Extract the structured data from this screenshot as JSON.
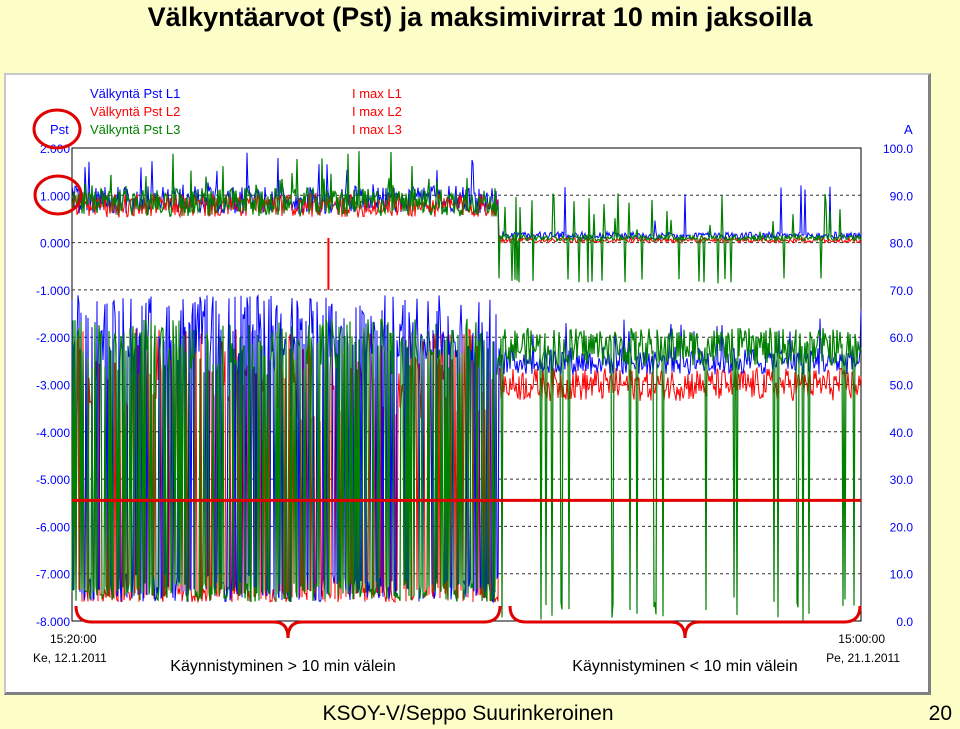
{
  "slide": {
    "title": "Välkyntäarvot (Pst) ja maksimivirrat 10 min jaksoilla",
    "footer": "KSOY-V/Seppo Suurinkeroinen",
    "page_number": "20"
  },
  "chart_data": {
    "type": "line",
    "left_axis": {
      "unit_label": "Pst",
      "range": [
        -8.0,
        2.0
      ],
      "ticks": [
        "2.000",
        "1.000",
        "0.000",
        "-1.000",
        "-2.000",
        "-3.000",
        "-4.000",
        "-5.000",
        "-6.000",
        "-7.000",
        "-8.000"
      ]
    },
    "right_axis": {
      "unit_label": "A",
      "range": [
        0.0,
        100.0
      ],
      "ticks": [
        "100.0",
        "90.0",
        "80.0",
        "70.0",
        "60.0",
        "50.0",
        "40.0",
        "30.0",
        "20.0",
        "10.0",
        "0.0"
      ]
    },
    "grid": true,
    "legend": [
      {
        "label": "Välkyntä Pst L1",
        "color": "#0000ff"
      },
      {
        "label": "Välkyntä Pst L2",
        "color": "#ff0000"
      },
      {
        "label": "Välkyntä Pst L3",
        "color": "#008000"
      },
      {
        "label": "I max L1",
        "color": "#ff0000"
      },
      {
        "label": "I max L2",
        "color": "#ff0000"
      },
      {
        "label": "I max L3",
        "color": "#ff0000"
      }
    ],
    "x_start": {
      "time": "15:20:00",
      "date": "Ke, 12.1.2011"
    },
    "x_end": {
      "time": "15:00:00",
      "date": "Pe, 21.1.2011"
    },
    "period_split_fraction": 0.54,
    "pst_levels_A": {
      "L1": 0.9,
      "L2": 0.78,
      "L3": 0.85
    },
    "pst_levels_B": {
      "L1": 0.15,
      "L2": 0.05,
      "L3": 0.1
    },
    "current_levels_A": {
      "L1": 62,
      "L2": 52,
      "L3": 58,
      "low": 4
    },
    "current_levels_B": {
      "L1": 55,
      "L2": 50,
      "L3": 58
    },
    "reference_line": {
      "axis": "right",
      "value": 25.5,
      "color": "#e00000"
    },
    "spike": {
      "fraction": 0.325,
      "pst": -1.0
    },
    "annotation_color": "#e00000"
  },
  "annotations": {
    "brace_left_label": "Käynnistyminen > 10 min välein",
    "brace_right_label": "Käynnistyminen < 10 min välein"
  }
}
